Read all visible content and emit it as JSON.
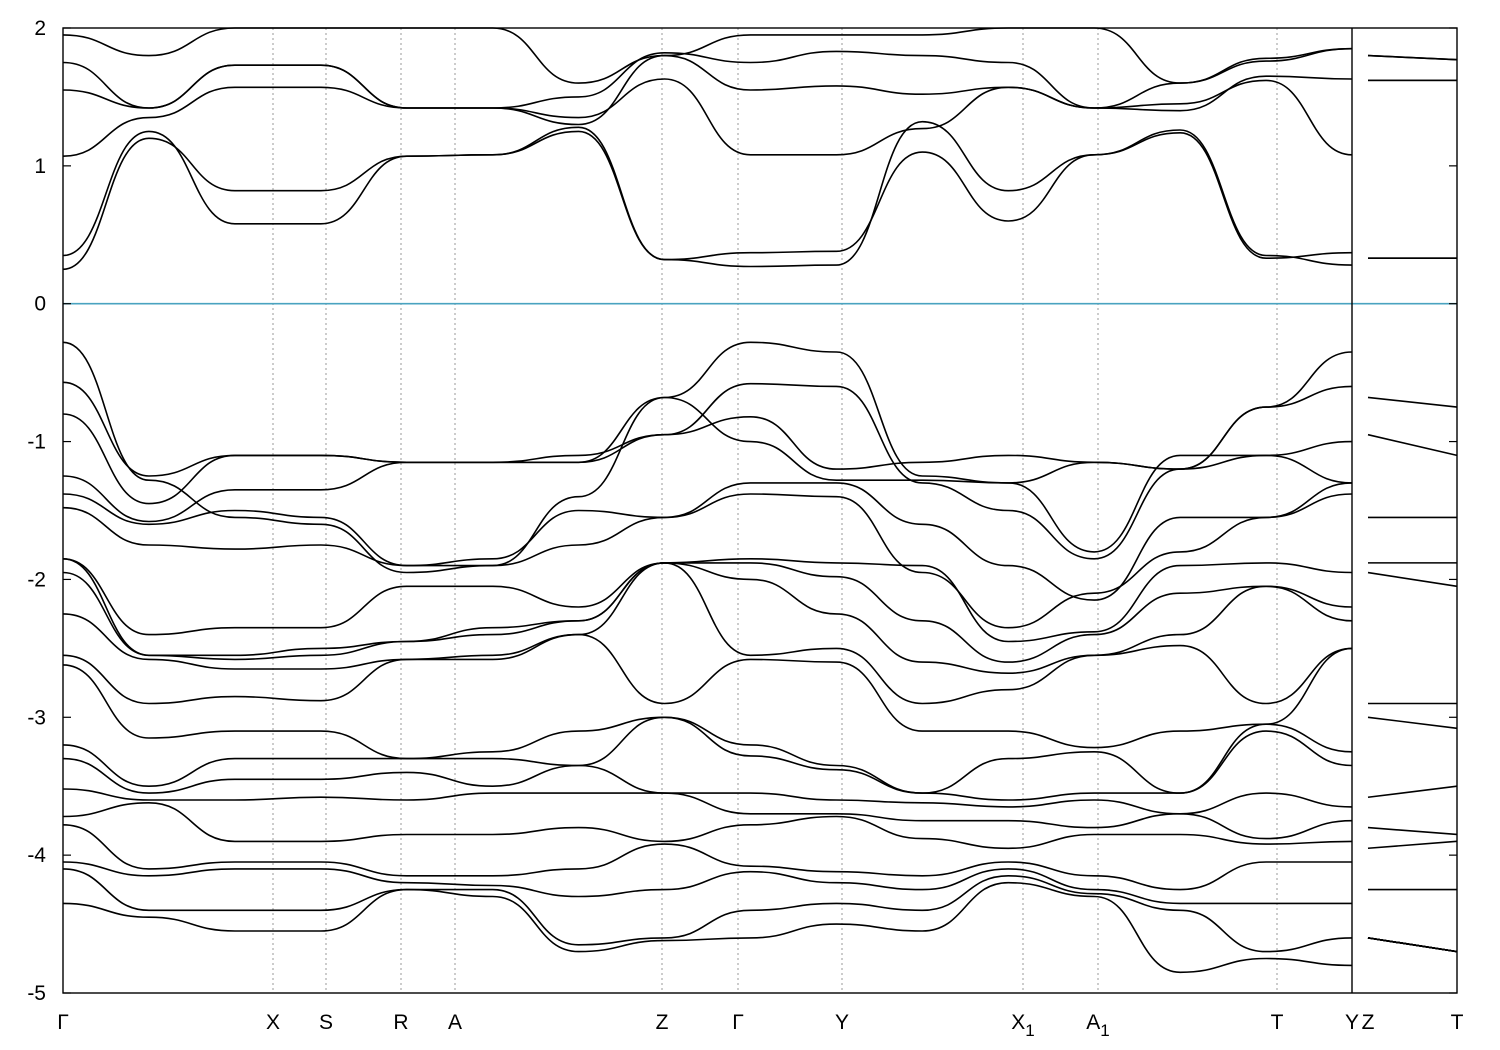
{
  "chart_data": {
    "type": "line",
    "title": "",
    "xlabel": "",
    "ylabel": "",
    "ylim": [
      -5,
      2
    ],
    "yticks": [
      "2",
      "1",
      "0",
      "-1",
      "-2",
      "-3",
      "-4",
      "-5"
    ],
    "x_high_symmetry_labels": [
      {
        "label": "Γ",
        "sub": ""
      },
      {
        "label": "X",
        "sub": ""
      },
      {
        "label": "S",
        "sub": ""
      },
      {
        "label": "R",
        "sub": ""
      },
      {
        "label": "A",
        "sub": ""
      },
      {
        "label": "Z",
        "sub": ""
      },
      {
        "label": "Γ",
        "sub": ""
      },
      {
        "label": "Y",
        "sub": ""
      },
      {
        "label": "X",
        "sub": "1"
      },
      {
        "label": "A",
        "sub": "1"
      },
      {
        "label": "T",
        "sub": ""
      },
      {
        "label": "Y",
        "sub": ""
      },
      {
        "label": "Z",
        "sub": ""
      },
      {
        "label": "T",
        "sub": ""
      }
    ],
    "x_break_between_segments": [
      11,
      12
    ],
    "fermi_level": {
      "y": 0,
      "color": "#4aa3c0"
    },
    "grid": "vertical dashed at high-symmetry points",
    "band_color": "#000000",
    "series": [
      {
        "values": [
          0.25,
          1.2,
          0.82,
          0.82,
          1.07,
          1.08,
          1.28,
          0.32,
          0.37,
          0.38,
          1.1,
          0.6,
          1.08,
          1.26,
          0.35,
          0.28,
          0.33,
          0.33
        ]
      },
      {
        "values": [
          0.35,
          1.25,
          0.58,
          0.58,
          1.07,
          1.08,
          1.25,
          0.32,
          0.27,
          0.28,
          1.32,
          0.82,
          1.08,
          1.24,
          0.33,
          0.37,
          0.33,
          0.33
        ]
      },
      {
        "values": [
          1.07,
          1.35,
          1.57,
          1.57,
          1.42,
          1.42,
          1.35,
          1.63,
          1.08,
          1.08,
          1.27,
          1.57,
          1.42,
          1.45,
          1.62,
          1.08,
          1.62,
          1.62
        ]
      },
      {
        "values": [
          1.55,
          1.42,
          1.73,
          1.73,
          1.42,
          1.42,
          1.3,
          1.8,
          1.55,
          1.58,
          1.52,
          1.57,
          1.42,
          1.4,
          1.65,
          1.63,
          1.62,
          1.62
        ]
      },
      {
        "values": [
          1.75,
          1.42,
          1.73,
          1.73,
          1.42,
          1.42,
          1.5,
          1.82,
          1.75,
          1.83,
          1.8,
          1.75,
          1.42,
          1.6,
          1.76,
          1.85,
          1.8,
          1.77
        ]
      },
      {
        "values": [
          1.95,
          1.8,
          2.1,
          2.1,
          2.1,
          2.0,
          1.6,
          1.8,
          1.95,
          1.95,
          1.95,
          2.05,
          2.1,
          1.6,
          1.78,
          1.85,
          1.8,
          1.77
        ]
      },
      {
        "values": [
          -0.28,
          -1.28,
          -1.55,
          -1.6,
          -1.95,
          -1.9,
          -1.4,
          -0.68,
          -0.28,
          -0.35,
          -1.25,
          -1.3,
          -1.15,
          -1.2,
          -0.75,
          -0.35,
          -0.68,
          -0.75
        ]
      },
      {
        "values": [
          -0.57,
          -1.25,
          -1.1,
          -1.1,
          -1.15,
          -1.15,
          -1.1,
          -0.95,
          -0.58,
          -0.6,
          -1.3,
          -1.5,
          -1.85,
          -1.2,
          -0.75,
          -0.6,
          -0.95,
          -1.1
        ]
      },
      {
        "values": [
          -0.8,
          -1.45,
          -1.1,
          -1.1,
          -1.15,
          -1.15,
          -1.15,
          -0.95,
          -0.82,
          -1.2,
          -1.15,
          -1.1,
          -1.15,
          -1.2,
          -1.1,
          -1.0,
          -1.55,
          -1.55
        ]
      },
      {
        "values": [
          -1.25,
          -1.58,
          -1.35,
          -1.35,
          -1.15,
          -1.15,
          -1.15,
          -0.68,
          -1.0,
          -1.28,
          -1.28,
          -1.3,
          -1.8,
          -1.1,
          -1.1,
          -1.3,
          -1.88,
          -1.88
        ]
      },
      {
        "values": [
          -1.38,
          -1.6,
          -1.5,
          -1.55,
          -1.9,
          -1.85,
          -1.5,
          -1.55,
          -1.3,
          -1.3,
          -1.6,
          -1.9,
          -2.15,
          -1.55,
          -1.55,
          -1.3,
          -1.95,
          -2.05
        ]
      },
      {
        "values": [
          -1.48,
          -1.75,
          -1.78,
          -1.75,
          -1.9,
          -1.9,
          -1.75,
          -1.55,
          -1.38,
          -1.4,
          -1.95,
          -2.35,
          -2.1,
          -1.8,
          -1.55,
          -1.38,
          -2.9,
          -2.9
        ]
      },
      {
        "values": [
          -1.85,
          -2.4,
          -2.35,
          -2.35,
          -2.05,
          -2.05,
          -2.2,
          -1.88,
          -1.85,
          -1.88,
          -1.9,
          -2.45,
          -2.38,
          -1.9,
          -1.88,
          -1.95,
          -3.0,
          -3.08
        ]
      },
      {
        "values": [
          -1.85,
          -2.55,
          -2.55,
          -2.5,
          -2.45,
          -2.35,
          -2.3,
          -1.88,
          -1.88,
          -1.98,
          -2.3,
          -2.6,
          -2.4,
          -2.1,
          -2.05,
          -2.2,
          -3.58,
          -3.5
        ]
      },
      {
        "values": [
          -1.95,
          -2.55,
          -2.58,
          -2.55,
          -2.45,
          -2.4,
          -2.3,
          -1.88,
          -2.0,
          -2.25,
          -2.6,
          -2.68,
          -2.55,
          -2.4,
          -2.05,
          -2.3,
          -3.8,
          -3.85
        ]
      },
      {
        "values": [
          -2.25,
          -2.58,
          -2.65,
          -2.65,
          -2.58,
          -2.55,
          -2.4,
          -1.88,
          -2.55,
          -2.5,
          -2.9,
          -2.8,
          -2.55,
          -2.48,
          -2.9,
          -2.5,
          -3.95,
          -3.9
        ]
      },
      {
        "values": [
          -2.55,
          -2.9,
          -2.85,
          -2.88,
          -2.58,
          -2.58,
          -2.4,
          -2.9,
          -2.58,
          -2.6,
          -3.1,
          -3.1,
          -3.22,
          -3.1,
          -3.05,
          -2.5,
          -4.25,
          -4.25
        ]
      },
      {
        "values": [
          -2.62,
          -3.15,
          -3.1,
          -3.1,
          -3.3,
          -3.25,
          -3.1,
          -3.0,
          -3.2,
          -3.35,
          -3.55,
          -3.3,
          -3.25,
          -3.55,
          -3.05,
          -3.25,
          -4.6,
          -4.7
        ]
      },
      {
        "values": [
          -3.2,
          -3.5,
          -3.3,
          -3.3,
          -3.3,
          -3.3,
          -3.35,
          -3.0,
          -3.28,
          -3.38,
          -3.55,
          -3.6,
          -3.55,
          -3.55,
          -3.1,
          -3.35,
          -4.6,
          -4.7
        ]
      },
      {
        "values": [
          -3.3,
          -3.55,
          -3.45,
          -3.45,
          -3.4,
          -3.5,
          -3.35,
          -3.55,
          -3.55,
          -3.6,
          -3.62,
          -3.65,
          -3.6,
          -3.7,
          -3.55,
          -3.65,
          -4.6,
          -4.7
        ]
      },
      {
        "values": [
          -3.52,
          -3.6,
          -3.6,
          -3.58,
          -3.6,
          -3.55,
          -3.55,
          -3.55,
          -3.7,
          -3.7,
          -3.75,
          -3.75,
          -3.8,
          -3.7,
          -3.88,
          -3.75,
          -4.6,
          -4.7
        ]
      },
      {
        "values": [
          -3.72,
          -3.62,
          -3.9,
          -3.9,
          -3.85,
          -3.85,
          -3.8,
          -3.9,
          -3.78,
          -3.72,
          -3.88,
          -3.95,
          -3.85,
          -3.85,
          -3.92,
          -3.9,
          -4.6,
          -4.7
        ]
      },
      {
        "values": [
          -3.78,
          -4.1,
          -4.05,
          -4.05,
          -4.15,
          -4.15,
          -4.1,
          -3.92,
          -4.08,
          -4.12,
          -4.15,
          -4.05,
          -4.15,
          -4.25,
          -4.05,
          -4.05,
          -4.6,
          -4.7
        ]
      },
      {
        "values": [
          -4.05,
          -4.15,
          -4.1,
          -4.1,
          -4.2,
          -4.22,
          -4.3,
          -4.25,
          -4.12,
          -4.2,
          -4.25,
          -4.1,
          -4.25,
          -4.35,
          -4.35,
          -4.35,
          -4.6,
          -4.7
        ]
      },
      {
        "values": [
          -4.1,
          -4.4,
          -4.4,
          -4.4,
          -4.25,
          -4.25,
          -4.65,
          -4.6,
          -4.4,
          -4.35,
          -4.4,
          -4.15,
          -4.28,
          -4.4,
          -4.7,
          -4.6,
          -4.6,
          -4.7
        ]
      },
      {
        "values": [
          -4.35,
          -4.45,
          -4.55,
          -4.55,
          -4.25,
          -4.3,
          -4.7,
          -4.62,
          -4.6,
          -4.5,
          -4.55,
          -4.2,
          -4.3,
          -4.85,
          -4.75,
          -4.8,
          -4.6,
          -4.7
        ]
      }
    ]
  }
}
